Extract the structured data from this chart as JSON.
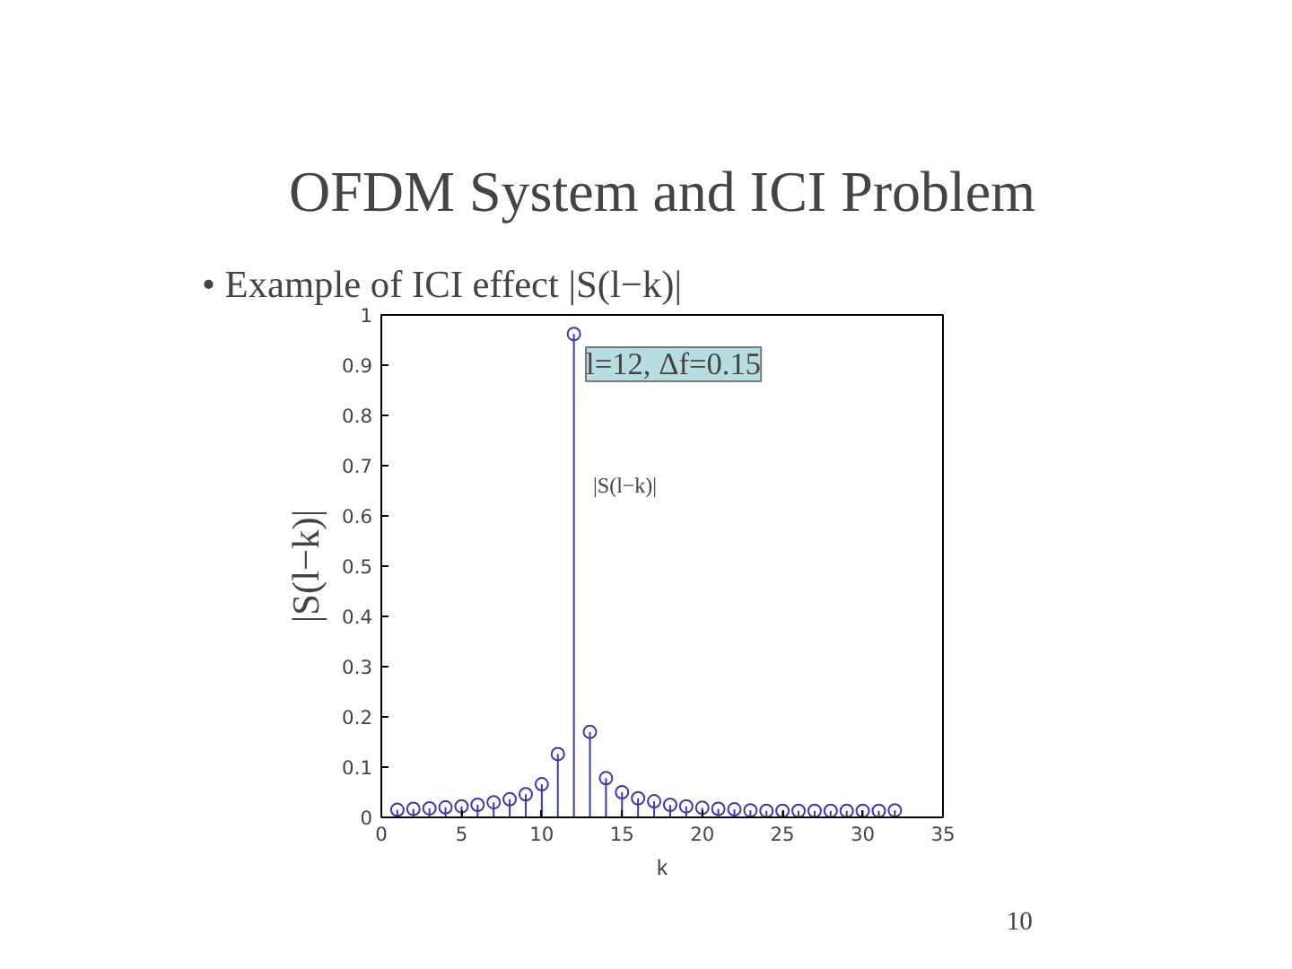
{
  "chart_data": {
    "type": "lollipop",
    "title": "OFDM System and ICI Problem",
    "subtitle": "• Example of ICI effect |S(l−k)|",
    "xlabel": "k",
    "ylabel": "|S(l−k)|",
    "x": [
      1,
      2,
      3,
      4,
      5,
      6,
      7,
      8,
      9,
      10,
      11,
      12,
      13,
      14,
      15,
      16,
      17,
      18,
      19,
      20,
      21,
      22,
      23,
      24,
      25,
      26,
      27,
      28,
      29,
      30,
      31,
      32
    ],
    "series": [
      {
        "color": "#3a3ab0",
        "values": [
          0.015,
          0.017,
          0.018,
          0.02,
          0.022,
          0.025,
          0.03,
          0.036,
          0.046,
          0.066,
          0.126,
          0.962,
          0.17,
          0.078,
          0.05,
          0.038,
          0.032,
          0.025,
          0.022,
          0.019,
          0.017,
          0.016,
          0.014,
          0.013,
          0.013,
          0.013,
          0.013,
          0.013,
          0.013,
          0.013,
          0.013,
          0.014
        ]
      }
    ],
    "xlim": [
      0,
      35
    ],
    "ylim": [
      0,
      1
    ],
    "xticks": [
      0,
      5,
      10,
      15,
      20,
      25,
      30,
      35
    ],
    "yticks": [
      0,
      0.1,
      0.2,
      0.3,
      0.4,
      0.5,
      0.6,
      0.7,
      0.8,
      0.9,
      1
    ],
    "marker": "circle",
    "grid": false,
    "annotations": [
      "l=12, Δf=0.15",
      "|S(l−k)|",
      "10"
    ]
  }
}
